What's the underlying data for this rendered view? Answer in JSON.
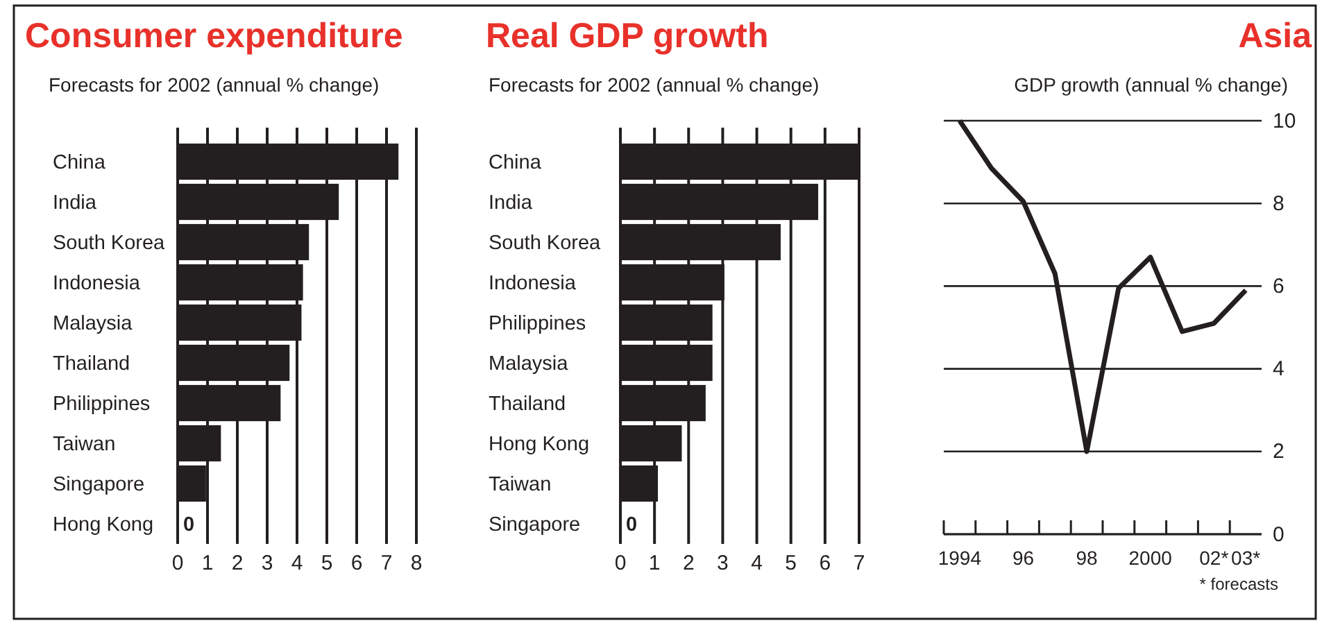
{
  "chart_data": [
    {
      "type": "bar",
      "orientation": "horizontal",
      "title": "Consumer expenditure",
      "subtitle": "Forecasts for 2002 (annual % change)",
      "categories": [
        "China",
        "India",
        "South Korea",
        "Indonesia",
        "Malaysia",
        "Thailand",
        "Philippines",
        "Taiwan",
        "Singapore",
        "Hong Kong"
      ],
      "values": [
        7.4,
        5.4,
        4.4,
        4.2,
        4.15,
        3.75,
        3.45,
        1.45,
        0.95,
        0
      ],
      "value_labels": [
        null,
        null,
        null,
        null,
        null,
        null,
        null,
        null,
        null,
        "0"
      ],
      "color": "#231f20",
      "xlim": [
        0,
        8
      ],
      "xticks": [
        0,
        1,
        2,
        3,
        4,
        5,
        6,
        7,
        8
      ],
      "grid": "x"
    },
    {
      "type": "bar",
      "orientation": "horizontal",
      "title": "Real GDP growth",
      "subtitle": "Forecasts for 2002 (annual % change)",
      "categories": [
        "China",
        "India",
        "South Korea",
        "Indonesia",
        "Philippines",
        "Malaysia",
        "Thailand",
        "Hong Kong",
        "Taiwan",
        "Singapore"
      ],
      "values": [
        7.0,
        5.8,
        4.7,
        3.05,
        2.7,
        2.7,
        2.5,
        1.8,
        1.1,
        0
      ],
      "value_labels": [
        null,
        null,
        null,
        null,
        null,
        null,
        null,
        null,
        null,
        "0"
      ],
      "color": "#231f20",
      "xlim": [
        0,
        7
      ],
      "xticks": [
        0,
        1,
        2,
        3,
        4,
        5,
        6,
        7
      ],
      "grid": "x"
    },
    {
      "type": "line",
      "title": "Asia",
      "subtitle": "GDP growth (annual % change)",
      "categories": [
        "1994",
        null,
        "96",
        null,
        "98",
        null,
        "2000",
        null,
        "02*",
        "03*"
      ],
      "values": [
        10.0,
        8.85,
        8.05,
        6.3,
        2.0,
        5.95,
        6.7,
        4.9,
        5.1,
        5.9
      ],
      "color": "#231f20",
      "line_style": "solid",
      "marker": "none",
      "ylim": [
        0,
        10
      ],
      "yticks": [
        0,
        2,
        4,
        6,
        8,
        10
      ],
      "grid": "y",
      "annotations": [
        "* forecasts"
      ]
    }
  ]
}
